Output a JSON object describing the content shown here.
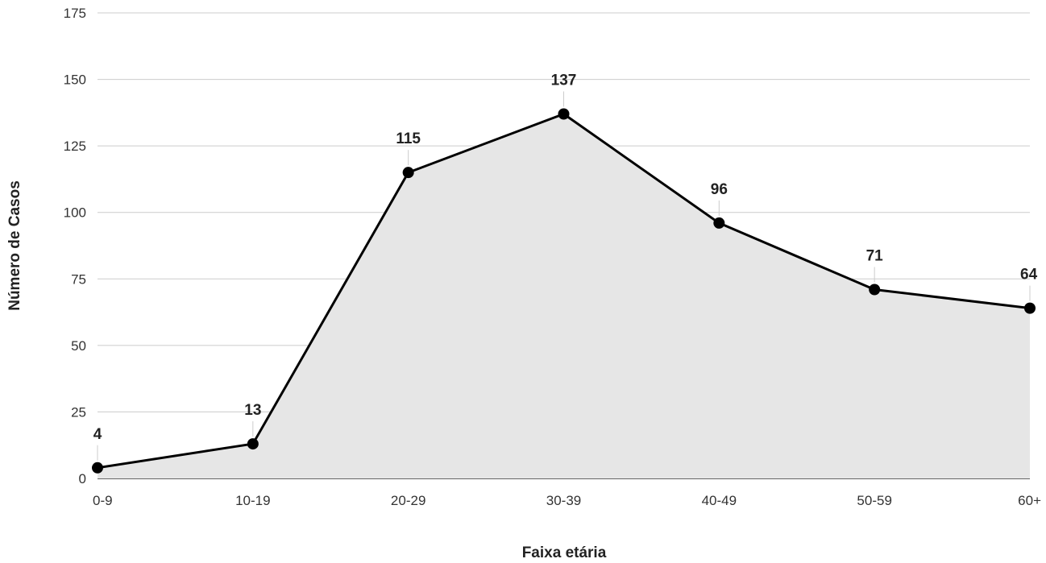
{
  "chart_data": {
    "type": "area",
    "categories": [
      "0-9",
      "10-19",
      "20-29",
      "30-39",
      "40-49",
      "50-59",
      "60+"
    ],
    "series": [
      {
        "values": [
          4,
          13,
          115,
          137,
          96,
          71,
          64
        ]
      }
    ],
    "data_labels": [
      "4",
      "13",
      "115",
      "137",
      "96",
      "71",
      "64"
    ],
    "title": "",
    "xlabel": "Faixa etária",
    "ylabel": "Número de Casos",
    "ylim": [
      0,
      175
    ],
    "yticks": [
      0,
      25,
      50,
      75,
      100,
      125,
      150,
      175
    ],
    "ytick_labels": [
      "0",
      "25",
      "50",
      "75",
      "100",
      "125",
      "150",
      "175"
    ],
    "grid": true,
    "legend": "none",
    "colors": {
      "line": "#000000",
      "fill": "#e6e6e6",
      "marker": "#000000",
      "grid": "#cccccc"
    }
  }
}
